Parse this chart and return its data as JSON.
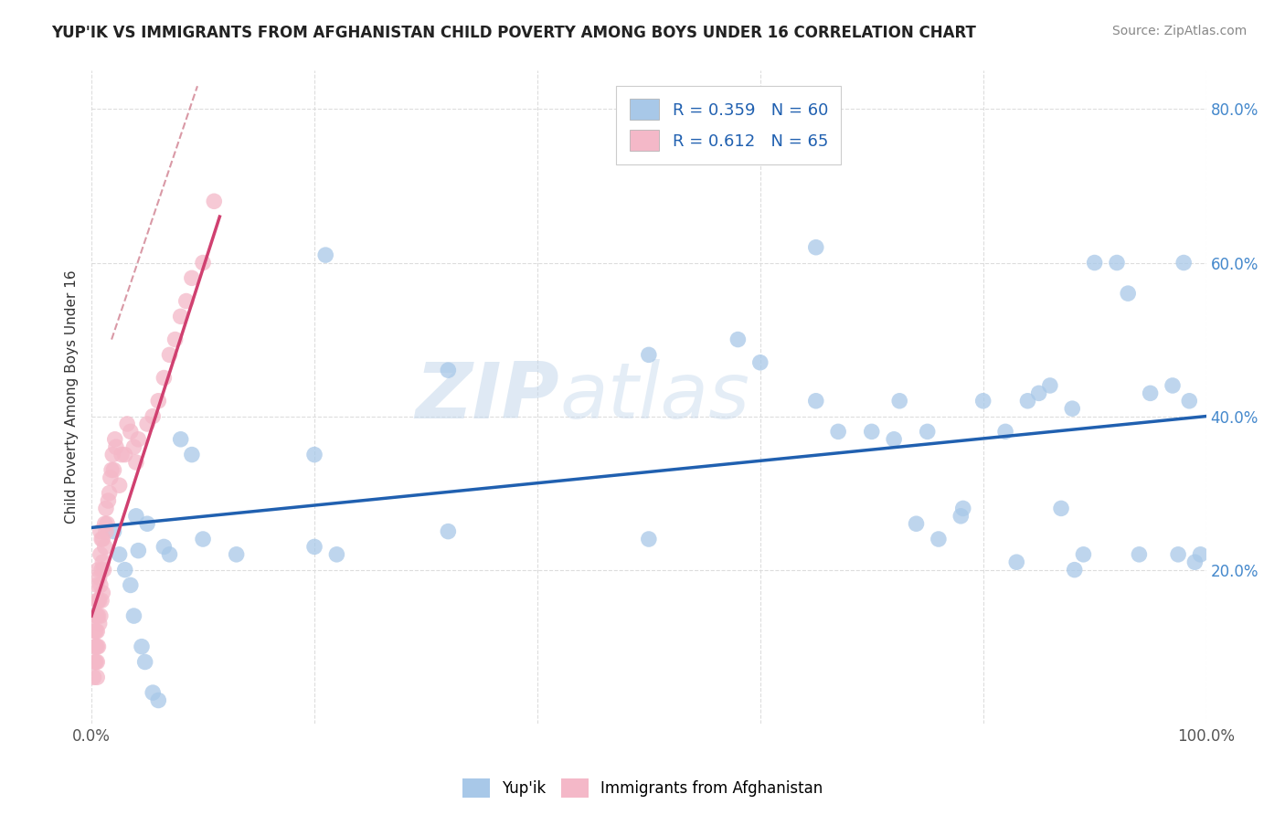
{
  "title": "YUP'IK VS IMMIGRANTS FROM AFGHANISTAN CHILD POVERTY AMONG BOYS UNDER 16 CORRELATION CHART",
  "source": "Source: ZipAtlas.com",
  "ylabel": "Child Poverty Among Boys Under 16",
  "xlim": [
    0,
    1.0
  ],
  "ylim": [
    0,
    0.85
  ],
  "legend_r1": "R = 0.359",
  "legend_n1": "N = 60",
  "legend_r2": "R = 0.612",
  "legend_n2": "N = 65",
  "color_blue": "#a8c8e8",
  "color_pink": "#f4b8c8",
  "color_line_blue": "#2060b0",
  "color_line_pink": "#d04070",
  "color_line_dashed": "#d08090",
  "watermark_zip": "ZIP",
  "watermark_atlas": "atlas",
  "blue_x": [
    0.02,
    0.025,
    0.03,
    0.035,
    0.038,
    0.04,
    0.042,
    0.045,
    0.048,
    0.05,
    0.055,
    0.06,
    0.065,
    0.07,
    0.08,
    0.09,
    0.1,
    0.13,
    0.2,
    0.21,
    0.2,
    0.22,
    0.32,
    0.32,
    0.5,
    0.5,
    0.58,
    0.6,
    0.65,
    0.65,
    0.67,
    0.7,
    0.72,
    0.725,
    0.74,
    0.75,
    0.76,
    0.78,
    0.782,
    0.8,
    0.82,
    0.83,
    0.84,
    0.85,
    0.86,
    0.87,
    0.88,
    0.882,
    0.89,
    0.9,
    0.92,
    0.93,
    0.94,
    0.95,
    0.97,
    0.975,
    0.98,
    0.985,
    0.99,
    0.995
  ],
  "blue_y": [
    0.25,
    0.22,
    0.2,
    0.18,
    0.14,
    0.27,
    0.225,
    0.1,
    0.08,
    0.26,
    0.04,
    0.03,
    0.23,
    0.22,
    0.37,
    0.35,
    0.24,
    0.22,
    0.23,
    0.61,
    0.35,
    0.22,
    0.46,
    0.25,
    0.48,
    0.24,
    0.5,
    0.47,
    0.62,
    0.42,
    0.38,
    0.38,
    0.37,
    0.42,
    0.26,
    0.38,
    0.24,
    0.27,
    0.28,
    0.42,
    0.38,
    0.21,
    0.42,
    0.43,
    0.44,
    0.28,
    0.41,
    0.2,
    0.22,
    0.6,
    0.6,
    0.56,
    0.22,
    0.43,
    0.44,
    0.22,
    0.6,
    0.42,
    0.21,
    0.22
  ],
  "pink_x": [
    0.002,
    0.003,
    0.003,
    0.003,
    0.004,
    0.004,
    0.004,
    0.004,
    0.005,
    0.005,
    0.005,
    0.005,
    0.005,
    0.005,
    0.005,
    0.006,
    0.006,
    0.006,
    0.006,
    0.007,
    0.007,
    0.007,
    0.008,
    0.008,
    0.008,
    0.008,
    0.009,
    0.009,
    0.009,
    0.01,
    0.01,
    0.01,
    0.011,
    0.012,
    0.012,
    0.013,
    0.013,
    0.014,
    0.015,
    0.016,
    0.017,
    0.018,
    0.019,
    0.02,
    0.021,
    0.022,
    0.025,
    0.027,
    0.03,
    0.032,
    0.035,
    0.038,
    0.04,
    0.042,
    0.05,
    0.055,
    0.06,
    0.065,
    0.07,
    0.075,
    0.08,
    0.085,
    0.09,
    0.1,
    0.11
  ],
  "pink_y": [
    0.06,
    0.08,
    0.1,
    0.12,
    0.08,
    0.1,
    0.12,
    0.14,
    0.06,
    0.08,
    0.1,
    0.12,
    0.14,
    0.16,
    0.18,
    0.1,
    0.14,
    0.16,
    0.2,
    0.13,
    0.16,
    0.19,
    0.14,
    0.18,
    0.22,
    0.25,
    0.16,
    0.2,
    0.24,
    0.17,
    0.21,
    0.24,
    0.2,
    0.23,
    0.26,
    0.25,
    0.28,
    0.26,
    0.29,
    0.3,
    0.32,
    0.33,
    0.35,
    0.33,
    0.37,
    0.36,
    0.31,
    0.35,
    0.35,
    0.39,
    0.38,
    0.36,
    0.34,
    0.37,
    0.39,
    0.4,
    0.42,
    0.45,
    0.48,
    0.5,
    0.53,
    0.55,
    0.58,
    0.6,
    0.68
  ],
  "blue_line_x": [
    0.0,
    1.0
  ],
  "blue_line_y": [
    0.255,
    0.4
  ],
  "pink_line_x": [
    0.0,
    0.115
  ],
  "pink_line_y": [
    0.14,
    0.66
  ],
  "dash_line_x": [
    0.018,
    0.095
  ],
  "dash_line_y": [
    0.5,
    0.83
  ]
}
